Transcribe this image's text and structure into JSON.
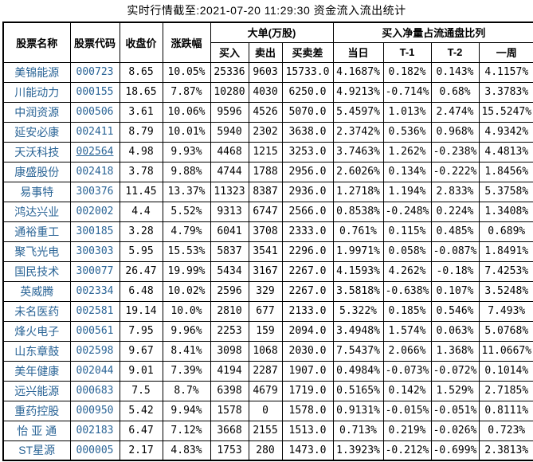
{
  "title": "实时行情截至:2021-07-20 11:29:30 资金流入流出统计",
  "colors": {
    "link": "#2A6496",
    "border": "#000000",
    "background": "#FFFFFF",
    "text": "#000000"
  },
  "table": {
    "headers": {
      "name": "股票名称",
      "code": "股票代码",
      "close": "收盘价",
      "change": "涨跌幅",
      "big_order_group": "大单(万股)",
      "buy": "买入",
      "sell": "卖出",
      "diff": "买卖差",
      "ratio_group": "买入净量占流通盘比列",
      "today": "当日",
      "t1": "T-1",
      "t2": "T-2",
      "week": "一周"
    },
    "rows": [
      {
        "name": "美锦能源",
        "code": "000723",
        "close": "8.65",
        "change": "10.05%",
        "buy": "25336",
        "sell": "9603",
        "diff": "15733.0",
        "today": "4.1687%",
        "t1": "0.182%",
        "t2": "0.143%",
        "week": "4.1157%",
        "code_underlined": false
      },
      {
        "name": "川能动力",
        "code": "000155",
        "close": "18.65",
        "change": "7.87%",
        "buy": "10280",
        "sell": "4030",
        "diff": "6250.0",
        "today": "4.9213%",
        "t1": "-0.714%",
        "t2": "0.68%",
        "week": "3.3783%",
        "code_underlined": false
      },
      {
        "name": "中润资源",
        "code": "000506",
        "close": "3.61",
        "change": "10.06%",
        "buy": "9596",
        "sell": "4526",
        "diff": "5070.0",
        "today": "5.4597%",
        "t1": "1.013%",
        "t2": "2.474%",
        "week": "15.5247%",
        "code_underlined": false
      },
      {
        "name": "延安必康",
        "code": "002411",
        "close": "8.79",
        "change": "10.01%",
        "buy": "5940",
        "sell": "2302",
        "diff": "3638.0",
        "today": "2.3742%",
        "t1": "0.536%",
        "t2": "0.968%",
        "week": "4.9342%",
        "code_underlined": false
      },
      {
        "name": "天沃科技",
        "code": "002564",
        "close": "4.98",
        "change": "9.93%",
        "buy": "4468",
        "sell": "1215",
        "diff": "3253.0",
        "today": "3.7463%",
        "t1": "1.262%",
        "t2": "-0.238%",
        "week": "4.4813%",
        "code_underlined": true
      },
      {
        "name": "康盛股份",
        "code": "002418",
        "close": "3.78",
        "change": "9.88%",
        "buy": "4744",
        "sell": "1788",
        "diff": "2956.0",
        "today": "2.6026%",
        "t1": "0.134%",
        "t2": "-0.222%",
        "week": "1.8456%",
        "code_underlined": false
      },
      {
        "name": "易事特",
        "code": "300376",
        "close": "11.45",
        "change": "13.37%",
        "buy": "11323",
        "sell": "8387",
        "diff": "2936.0",
        "today": "1.2718%",
        "t1": "1.194%",
        "t2": "2.833%",
        "week": "5.3758%",
        "code_underlined": false
      },
      {
        "name": "鸿达兴业",
        "code": "002002",
        "close": "4.4",
        "change": "5.52%",
        "buy": "9313",
        "sell": "6747",
        "diff": "2566.0",
        "today": "0.8538%",
        "t1": "-0.248%",
        "t2": "0.224%",
        "week": "1.3408%",
        "code_underlined": false
      },
      {
        "name": "通裕重工",
        "code": "300185",
        "close": "3.28",
        "change": "4.79%",
        "buy": "6041",
        "sell": "3708",
        "diff": "2333.0",
        "today": "0.761%",
        "t1": "0.115%",
        "t2": "0.485%",
        "week": "0.689%",
        "code_underlined": false
      },
      {
        "name": "聚飞光电",
        "code": "300303",
        "close": "5.95",
        "change": "15.53%",
        "buy": "5837",
        "sell": "3541",
        "diff": "2296.0",
        "today": "1.9971%",
        "t1": "0.058%",
        "t2": "-0.087%",
        "week": "1.8491%",
        "code_underlined": false
      },
      {
        "name": "国民技术",
        "code": "300077",
        "close": "26.47",
        "change": "19.99%",
        "buy": "5434",
        "sell": "3167",
        "diff": "2267.0",
        "today": "4.1593%",
        "t1": "4.262%",
        "t2": "-0.18%",
        "week": "7.4253%",
        "code_underlined": false
      },
      {
        "name": "英威腾",
        "code": "002334",
        "close": "6.48",
        "change": "10.02%",
        "buy": "2596",
        "sell": "329",
        "diff": "2267.0",
        "today": "3.5818%",
        "t1": "-0.638%",
        "t2": "0.107%",
        "week": "3.5248%",
        "code_underlined": false
      },
      {
        "name": "未名医药",
        "code": "002581",
        "close": "19.14",
        "change": "10.0%",
        "buy": "2810",
        "sell": "677",
        "diff": "2133.0",
        "today": "5.322%",
        "t1": "0.185%",
        "t2": "0.546%",
        "week": "7.493%",
        "code_underlined": false
      },
      {
        "name": "烽火电子",
        "code": "000561",
        "close": "7.95",
        "change": "9.96%",
        "buy": "2253",
        "sell": "159",
        "diff": "2094.0",
        "today": "3.4948%",
        "t1": "1.574%",
        "t2": "0.063%",
        "week": "5.0768%",
        "code_underlined": false
      },
      {
        "name": "山东章鼓",
        "code": "002598",
        "close": "9.67",
        "change": "8.41%",
        "buy": "3098",
        "sell": "1068",
        "diff": "2030.0",
        "today": "7.5437%",
        "t1": "2.066%",
        "t2": "1.368%",
        "week": "11.0667%",
        "code_underlined": false
      },
      {
        "name": "美年健康",
        "code": "002044",
        "close": "9.01",
        "change": "7.39%",
        "buy": "4194",
        "sell": "2287",
        "diff": "1907.0",
        "today": "0.4984%",
        "t1": "-0.073%",
        "t2": "-0.072%",
        "week": "0.1014%",
        "code_underlined": false
      },
      {
        "name": "远兴能源",
        "code": "000683",
        "close": "7.5",
        "change": "8.7%",
        "buy": "6398",
        "sell": "4679",
        "diff": "1719.0",
        "today": "0.5165%",
        "t1": "0.142%",
        "t2": "1.529%",
        "week": "2.7185%",
        "code_underlined": false
      },
      {
        "name": "重药控股",
        "code": "000950",
        "close": "5.42",
        "change": "9.94%",
        "buy": "1578",
        "sell": "0",
        "diff": "1578.0",
        "today": "0.9131%",
        "t1": "-0.015%",
        "t2": "-0.051%",
        "week": "0.8111%",
        "code_underlined": false
      },
      {
        "name": "怡 亚 通",
        "code": "002183",
        "close": "6.47",
        "change": "7.12%",
        "buy": "3668",
        "sell": "2155",
        "diff": "1513.0",
        "today": "0.713%",
        "t1": "0.219%",
        "t2": "-0.026%",
        "week": "0.723%",
        "code_underlined": false
      },
      {
        "name": "ST星源",
        "code": "000005",
        "close": "2.17",
        "change": "4.83%",
        "buy": "1753",
        "sell": "280",
        "diff": "1473.0",
        "today": "1.3923%",
        "t1": "-0.212%",
        "t2": "-0.699%",
        "week": "2.3813%",
        "code_underlined": false
      }
    ]
  }
}
